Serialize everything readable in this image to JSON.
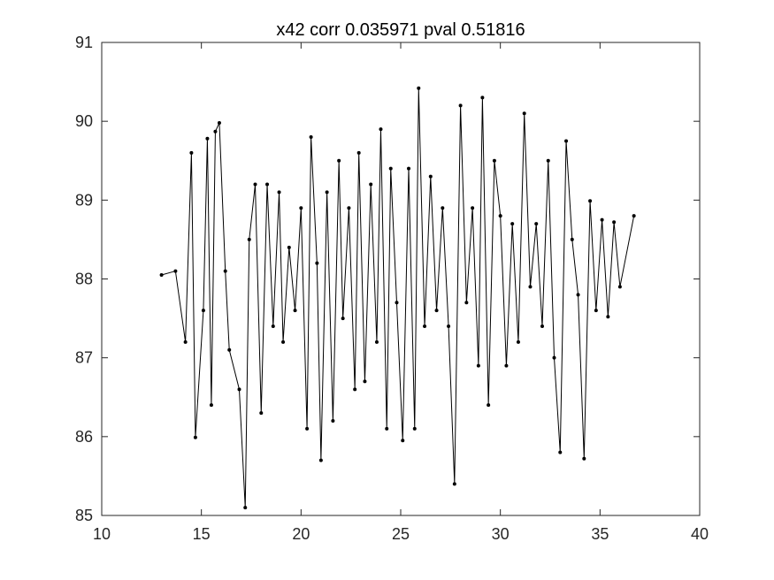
{
  "chart_data": {
    "type": "line",
    "title": "x42 corr 0.035971 pval 0.51816",
    "xlabel": "",
    "ylabel": "",
    "xlim": [
      10,
      40
    ],
    "ylim": [
      85,
      91
    ],
    "xticks": [
      10,
      15,
      20,
      25,
      30,
      35,
      40
    ],
    "yticks": [
      85,
      86,
      87,
      88,
      89,
      90,
      91
    ],
    "xtick_labels": [
      "10",
      "15",
      "20",
      "25",
      "30",
      "35",
      "40"
    ],
    "ytick_labels": [
      "85",
      "86",
      "87",
      "88",
      "89",
      "90",
      "91"
    ],
    "grid": false,
    "marker": "dot",
    "line_color": "#000000",
    "series": [
      {
        "x": [
          13.0,
          13.7,
          14.2,
          14.5,
          14.7,
          15.1,
          15.3,
          15.5,
          15.7,
          15.9,
          16.2,
          16.4,
          16.9,
          17.2,
          17.4,
          17.7,
          18.0,
          18.3,
          18.6,
          18.9,
          19.1,
          19.4,
          19.7,
          20.0,
          20.3,
          20.5,
          20.8,
          21.0,
          21.3,
          21.6,
          21.9,
          22.1,
          22.4,
          22.7,
          22.9,
          23.2,
          23.5,
          23.8,
          24.0,
          24.3,
          24.5,
          24.8,
          25.1,
          25.4,
          25.7,
          25.9,
          26.2,
          26.5,
          26.8,
          27.1,
          27.4,
          27.7,
          28.0,
          28.3,
          28.6,
          28.9,
          29.1,
          29.4,
          29.7,
          30.0,
          30.3,
          30.6,
          30.9,
          31.2,
          31.5,
          31.8,
          32.1,
          32.4,
          32.7,
          33.0,
          33.3,
          33.6,
          33.9,
          34.2,
          34.5,
          34.8,
          35.1,
          35.4,
          35.7,
          36.0,
          36.7
        ],
        "y": [
          88.05,
          88.1,
          87.2,
          89.6,
          85.99,
          87.6,
          89.78,
          86.4,
          89.87,
          89.98,
          88.1,
          87.1,
          86.6,
          85.1,
          88.5,
          89.2,
          86.3,
          89.2,
          87.4,
          89.1,
          87.2,
          88.4,
          87.6,
          88.9,
          86.1,
          89.8,
          88.2,
          85.7,
          89.1,
          86.2,
          89.5,
          87.5,
          88.9,
          86.6,
          89.6,
          86.7,
          89.2,
          87.2,
          89.9,
          86.1,
          89.4,
          87.7,
          85.95,
          89.4,
          86.1,
          90.42,
          87.4,
          89.3,
          87.6,
          88.9,
          87.4,
          85.4,
          90.2,
          87.7,
          88.9,
          86.9,
          90.3,
          86.4,
          89.5,
          88.8,
          86.9,
          88.7,
          87.2,
          90.1,
          87.9,
          88.7,
          87.4,
          89.5,
          87.0,
          85.8,
          89.75,
          88.5,
          87.8,
          85.72,
          88.99,
          87.6,
          88.75,
          87.52,
          88.72,
          87.9,
          88.8
        ]
      }
    ]
  }
}
